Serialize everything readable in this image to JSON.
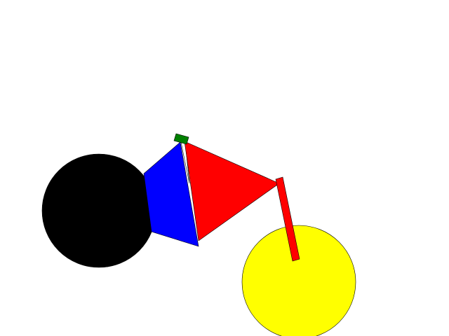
{
  "scene": {
    "background": "#ffffff",
    "shapes": {
      "rear_wheel": {
        "fill": "#000000"
      },
      "rear_frame": {
        "fill": "#0000ff"
      },
      "front_frame": {
        "fill": "#ff0000"
      },
      "seat": {
        "fill": "#008000"
      },
      "seat_post": {
        "fill": "#ffffff"
      },
      "front_fork": {
        "fill": "#ff0000"
      },
      "front_wheel": {
        "fill": "#ffff00"
      },
      "outline": "#000000"
    }
  }
}
